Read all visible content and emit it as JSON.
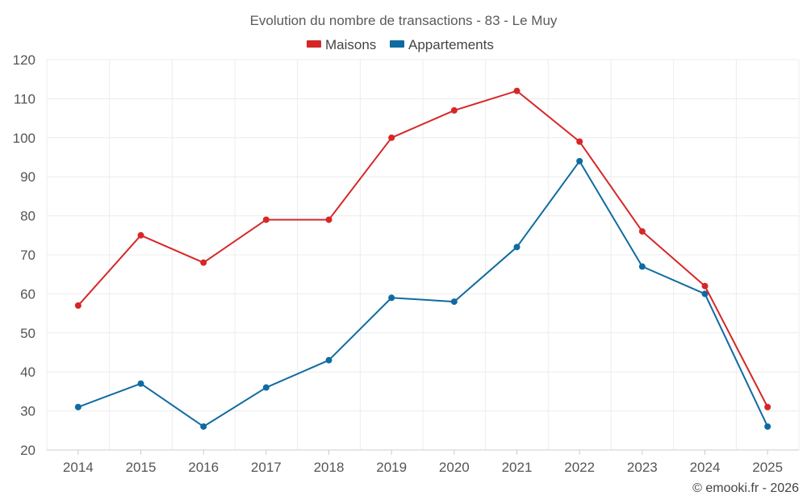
{
  "chart_data": {
    "type": "line",
    "title": "Evolution du nombre de transactions - 83 - Le Muy",
    "categories": [
      "2014",
      "2015",
      "2016",
      "2017",
      "2018",
      "2019",
      "2020",
      "2021",
      "2022",
      "2023",
      "2024",
      "2025"
    ],
    "series": [
      {
        "name": "Maisons",
        "color": "#d62728",
        "values": [
          57,
          75,
          68,
          79,
          79,
          100,
          107,
          112,
          99,
          76,
          62,
          31
        ]
      },
      {
        "name": "Appartements",
        "color": "#0f6ba1",
        "values": [
          31,
          37,
          26,
          36,
          43,
          59,
          58,
          72,
          94,
          67,
          60,
          26
        ]
      }
    ],
    "ylim": [
      20,
      120
    ],
    "yticks": [
      20,
      30,
      40,
      50,
      60,
      70,
      80,
      90,
      100,
      110,
      120
    ],
    "grid": true,
    "legend": "top-center",
    "xlabel": "",
    "ylabel": ""
  },
  "credit": "© emooki.fr - 2026"
}
